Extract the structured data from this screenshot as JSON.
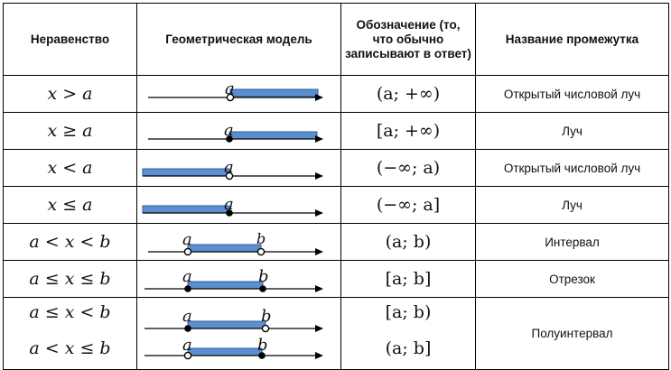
{
  "headers": {
    "inequality": "Неравенство",
    "model": "Геометрическая модель",
    "notation": "Обозначение (то, что обычно записывают в ответ)",
    "name": "Название промежутка"
  },
  "rows": [
    {
      "inequality": "x > a",
      "notation": "(a; +∞)",
      "name": "Открытый числовой луч",
      "a_label": "a",
      "b_label": ""
    },
    {
      "inequality": "x ≥ a",
      "notation": "[a; +∞)",
      "name": "Луч",
      "a_label": "a",
      "b_label": ""
    },
    {
      "inequality": "x < a",
      "notation": "(−∞; a)",
      "name": "Открытый числовой луч",
      "a_label": "a",
      "b_label": ""
    },
    {
      "inequality": "x ≤ a",
      "notation": "(−∞; a]",
      "name": "Луч",
      "a_label": "a",
      "b_label": ""
    },
    {
      "inequality": "a < x < b",
      "notation": "(a; b)",
      "name": "Интервал",
      "a_label": "a",
      "b_label": "b"
    },
    {
      "inequality": "a ≤ x ≤ b",
      "notation": "[a; b]",
      "name": "Отрезок",
      "a_label": "a",
      "b_label": "b"
    }
  ],
  "half_interval": {
    "name": "Полуинтервал",
    "lines": [
      {
        "inequality": "a ≤ x < b",
        "notation": "[a; b)",
        "a_label": "a",
        "b_label": "b"
      },
      {
        "inequality": "a < x ≤ b",
        "notation": "(a; b]",
        "a_label": "a",
        "b_label": "b"
      }
    ]
  }
}
